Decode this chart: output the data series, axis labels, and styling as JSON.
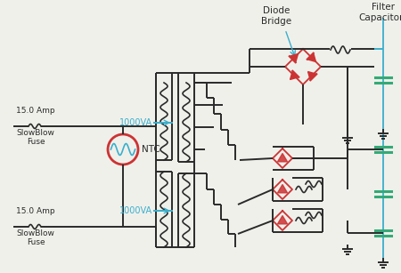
{
  "bg_color": "#f0f0eb",
  "line_color": "#2a2a2a",
  "blue_color": "#3aafcc",
  "red_color": "#cc3333",
  "green_color": "#33aa77",
  "label_diode_bridge": "Diode\nBridge",
  "label_filter_cap": "Filter\nCapacitors",
  "label_ntc": "NTC",
  "label_1000va_top": "1000VA",
  "label_1000va_bot": "1000VA",
  "label_fuse_top_amp": "15.0 Amp",
  "label_fuse_bot_amp": "15.0 Amp",
  "label_fuse_name": "SlowBlow\nFuse"
}
